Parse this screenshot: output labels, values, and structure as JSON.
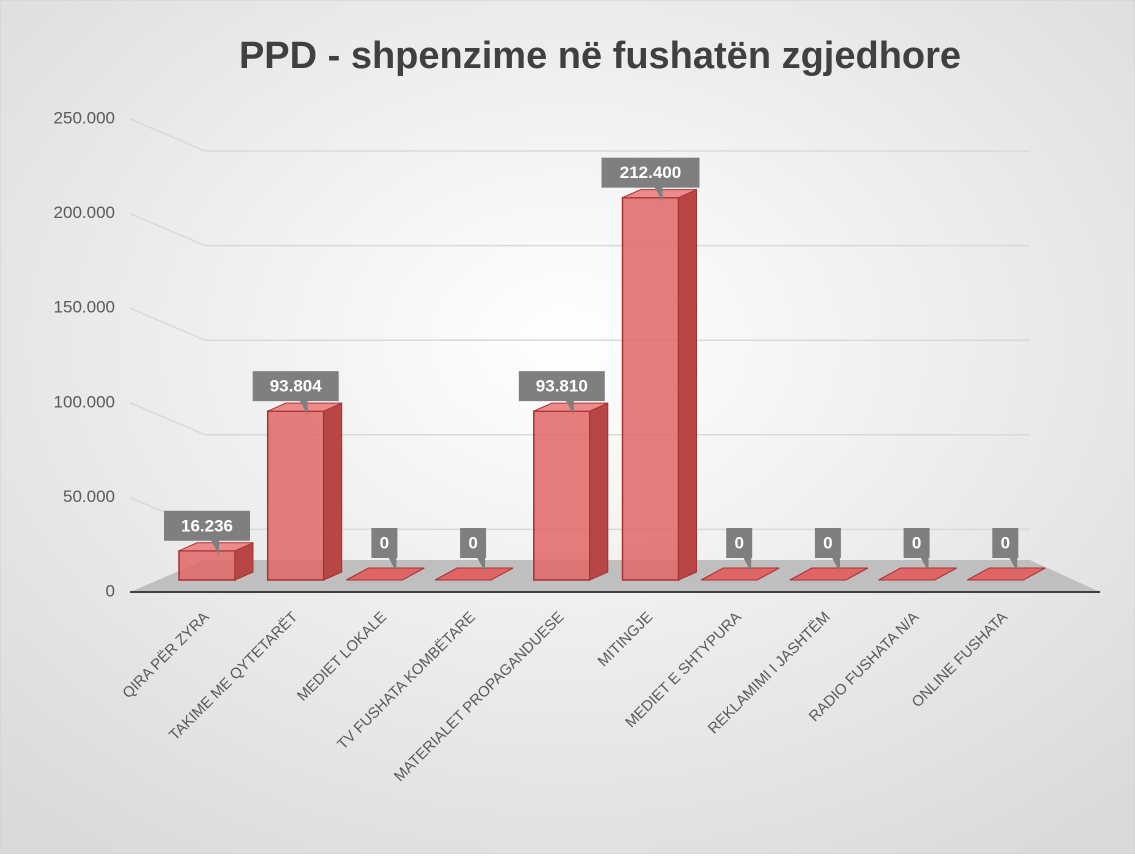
{
  "chart_data": {
    "type": "bar",
    "title": "PPD - shpenzime në fushatën zgjedhore",
    "categories": [
      "QIRA PËR ZYRA",
      "TAKIME ME QYTETARËT",
      "MEDIET LOKALE",
      "TV FUSHATA KOMBËTARE",
      "MATERIALET PROPAGANDUESE",
      "MITINGJE",
      "MEDIET E SHTYPURA",
      "REKLAMIMI I JASHTËM",
      "RADIO FUSHATA N/A",
      "ONLINE FUSHATA"
    ],
    "values": [
      16236,
      93804,
      0,
      0,
      93810,
      212400,
      0,
      0,
      0,
      0
    ],
    "value_labels": [
      "16.236",
      "93.804",
      "0",
      "0",
      "93.810",
      "212.400",
      "0",
      "0",
      "0",
      "0"
    ],
    "color": "#e06666",
    "ylim": [
      0,
      250000
    ],
    "yticks": [
      0,
      {
        "value": 50000,
        "label": "50.000"
      },
      {
        "value": 100000,
        "label": "100.000"
      },
      {
        "value": 150000,
        "label": "150.000"
      },
      {
        "value": 200000,
        "label": "200.000"
      },
      {
        "value": 250000,
        "label": "250.000"
      }
    ],
    "grid": true
  }
}
